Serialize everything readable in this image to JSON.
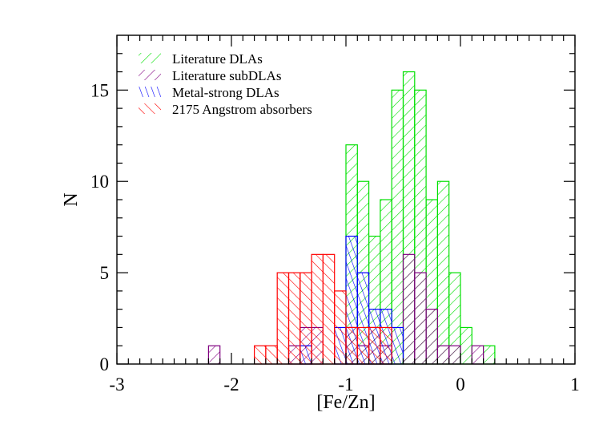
{
  "chart_data": {
    "type": "histogram",
    "title": "",
    "xlabel": "[Fe/Zn]",
    "ylabel": "N",
    "xlim": [
      -3,
      1
    ],
    "ylim": [
      0,
      18
    ],
    "x_ticks": [
      -3,
      -2,
      -1,
      0,
      1
    ],
    "x_tick_labels": [
      "-3",
      "-2",
      "-1",
      "0",
      "1"
    ],
    "y_ticks": [
      0,
      5,
      10,
      15
    ],
    "y_tick_labels": [
      "0",
      "5",
      "10",
      "15"
    ],
    "bin_width": 0.1,
    "grid": false,
    "legend_position": "top-left",
    "series": [
      {
        "name": "Literature DLAs",
        "color": "#00e000",
        "hatch": "diagonal-down",
        "bins": [
          {
            "x0": -1.0,
            "x1": -0.9,
            "count": 12
          },
          {
            "x0": -0.9,
            "x1": -0.8,
            "count": 10
          },
          {
            "x0": -0.8,
            "x1": -0.7,
            "count": 7
          },
          {
            "x0": -0.7,
            "x1": -0.6,
            "count": 9
          },
          {
            "x0": -0.6,
            "x1": -0.5,
            "count": 15
          },
          {
            "x0": -0.5,
            "x1": -0.4,
            "count": 16
          },
          {
            "x0": -0.4,
            "x1": -0.3,
            "count": 15
          },
          {
            "x0": -0.3,
            "x1": -0.2,
            "count": 9
          },
          {
            "x0": -0.2,
            "x1": -0.1,
            "count": 10
          },
          {
            "x0": -0.1,
            "x1": 0.0,
            "count": 5
          },
          {
            "x0": 0.0,
            "x1": 0.1,
            "count": 2
          },
          {
            "x0": 0.2,
            "x1": 0.3,
            "count": 1
          }
        ]
      },
      {
        "name": "Literature subDLAs",
        "color": "#800080",
        "hatch": "diagonal-down",
        "bins": [
          {
            "x0": -2.2,
            "x1": -2.1,
            "count": 1
          },
          {
            "x0": -1.5,
            "x1": -1.4,
            "count": 1
          },
          {
            "x0": -1.4,
            "x1": -1.3,
            "count": 2
          },
          {
            "x0": -1.3,
            "x1": -1.2,
            "count": 2
          },
          {
            "x0": -1.0,
            "x1": -0.9,
            "count": 2
          },
          {
            "x0": -0.9,
            "x1": -0.8,
            "count": 1
          },
          {
            "x0": -0.8,
            "x1": -0.7,
            "count": 2
          },
          {
            "x0": -0.7,
            "x1": -0.6,
            "count": 1
          },
          {
            "x0": -0.5,
            "x1": -0.4,
            "count": 6
          },
          {
            "x0": -0.4,
            "x1": -0.3,
            "count": 5
          },
          {
            "x0": -0.3,
            "x1": -0.2,
            "count": 3
          },
          {
            "x0": -0.2,
            "x1": -0.1,
            "count": 1
          },
          {
            "x0": -0.1,
            "x1": 0.0,
            "count": 1
          },
          {
            "x0": 0.1,
            "x1": 0.2,
            "count": 1
          }
        ]
      },
      {
        "name": "Metal-strong DLAs",
        "color": "#0000ff",
        "hatch": "shallow-up",
        "bins": [
          {
            "x0": -1.4,
            "x1": -1.3,
            "count": 1
          },
          {
            "x0": -1.1,
            "x1": -1.0,
            "count": 2
          },
          {
            "x0": -1.0,
            "x1": -0.9,
            "count": 7
          },
          {
            "x0": -0.9,
            "x1": -0.8,
            "count": 5
          },
          {
            "x0": -0.8,
            "x1": -0.7,
            "count": 3
          },
          {
            "x0": -0.7,
            "x1": -0.6,
            "count": 3
          },
          {
            "x0": -0.6,
            "x1": -0.5,
            "count": 2
          }
        ]
      },
      {
        "name": "2175 Angstrom absorbers",
        "color": "#ff0000",
        "hatch": "diagonal-up",
        "bins": [
          {
            "x0": -1.8,
            "x1": -1.7,
            "count": 1
          },
          {
            "x0": -1.7,
            "x1": -1.6,
            "count": 1
          },
          {
            "x0": -1.6,
            "x1": -1.5,
            "count": 5
          },
          {
            "x0": -1.5,
            "x1": -1.4,
            "count": 5
          },
          {
            "x0": -1.4,
            "x1": -1.3,
            "count": 5
          },
          {
            "x0": -1.3,
            "x1": -1.2,
            "count": 6
          },
          {
            "x0": -1.2,
            "x1": -1.1,
            "count": 6
          },
          {
            "x0": -1.1,
            "x1": -1.0,
            "count": 4
          },
          {
            "x0": -1.0,
            "x1": -0.9,
            "count": 2
          },
          {
            "x0": -0.9,
            "x1": -0.8,
            "count": 2
          },
          {
            "x0": -0.8,
            "x1": -0.7,
            "count": 2
          },
          {
            "x0": -0.7,
            "x1": -0.6,
            "count": 2
          }
        ]
      }
    ]
  }
}
